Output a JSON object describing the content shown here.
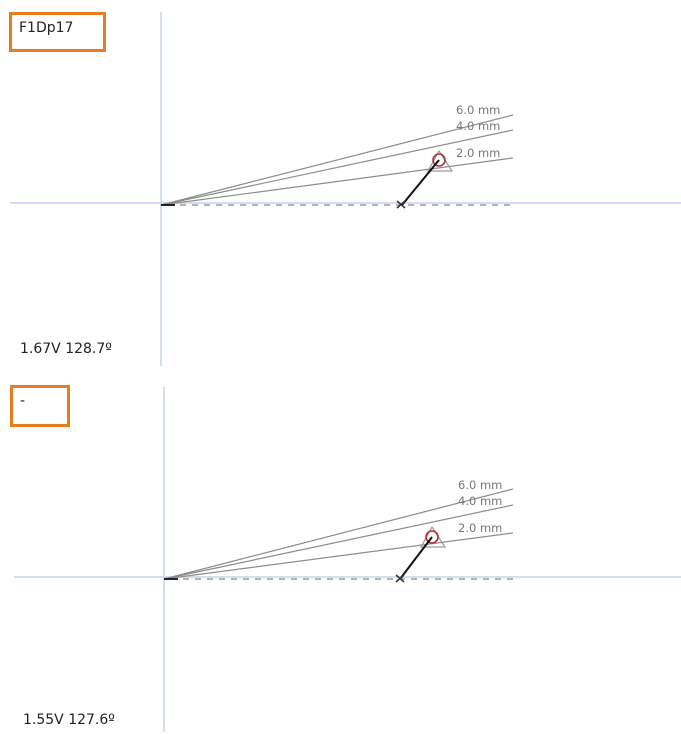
{
  "panels": [
    {
      "label": "F1Dp17",
      "readout": "1.67V 128.7º",
      "lines": [
        "6.0 mm",
        "4.0 mm",
        "2.0 mm"
      ]
    },
    {
      "label": "-",
      "readout": "1.55V 127.6º",
      "lines": [
        "6.0 mm",
        "4.0 mm",
        "2.0 mm"
      ]
    }
  ],
  "colors": {
    "axis": "#c5d4f0",
    "line": "#8c8c8c",
    "box": "#e87c1e",
    "circle": "#b03030",
    "arrow": "#111111"
  }
}
